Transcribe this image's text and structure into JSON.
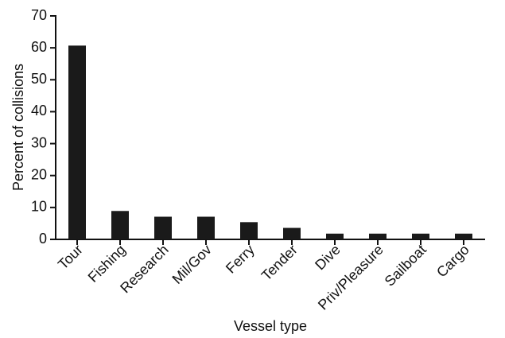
{
  "chart_data": {
    "type": "bar",
    "x_label": "Vessel type",
    "y_label": "Percent of collisions",
    "categories": [
      "Tour",
      "Fishing",
      "Research",
      "Mil/Gov",
      "Ferry",
      "Tender",
      "Dive",
      "Priv/Pleasure",
      "Sailboat",
      "Cargo"
    ],
    "values": [
      60.7,
      8.9,
      7.1,
      7.1,
      5.4,
      3.6,
      1.8,
      1.8,
      1.8,
      1.8
    ],
    "color": "#1a1a1a",
    "ylim": [
      0,
      70
    ],
    "yticks": [
      0,
      10,
      20,
      30,
      40,
      50,
      60,
      70
    ],
    "grid": false
  }
}
